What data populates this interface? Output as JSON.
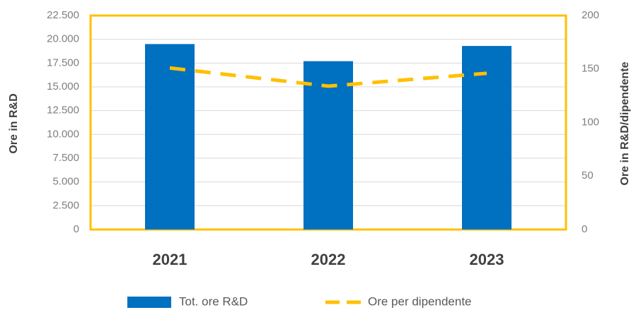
{
  "chart_data": {
    "type": "bar",
    "ylabel": "Ore in R&D",
    "y2label": "Ore in R&D/dipendente",
    "categories": [
      "2021",
      "2022",
      "2023"
    ],
    "series": [
      {
        "name": "Tot. ore R&D",
        "color": "#0070c0",
        "type": "bar",
        "values": [
          19500,
          17700,
          19300
        ]
      },
      {
        "name": "Ore per dipendente",
        "color": "#ffc000",
        "type": "line",
        "axis": "y2",
        "dashed": true,
        "values": [
          151,
          134,
          146
        ]
      }
    ],
    "ylim": [
      0,
      22500
    ],
    "yticks": [
      0,
      {
        "value": 2500,
        "label": "2.500"
      },
      {
        "value": 5000,
        "label": "5.000"
      },
      {
        "value": 7500,
        "label": "7.500"
      },
      {
        "value": 10000,
        "label": "10.000"
      },
      {
        "value": 12500,
        "label": "12.500"
      },
      {
        "value": 15000,
        "label": "15.000"
      },
      {
        "value": 17500,
        "label": "17.500"
      },
      {
        "value": 20000,
        "label": "20.000"
      },
      {
        "value": 22500,
        "label": "22.500"
      }
    ],
    "y2lim": [
      0,
      200
    ],
    "y2ticks": [
      0,
      50,
      100,
      150,
      200
    ],
    "grid": true,
    "border_color": "#ffc000",
    "legend": "bottom"
  }
}
